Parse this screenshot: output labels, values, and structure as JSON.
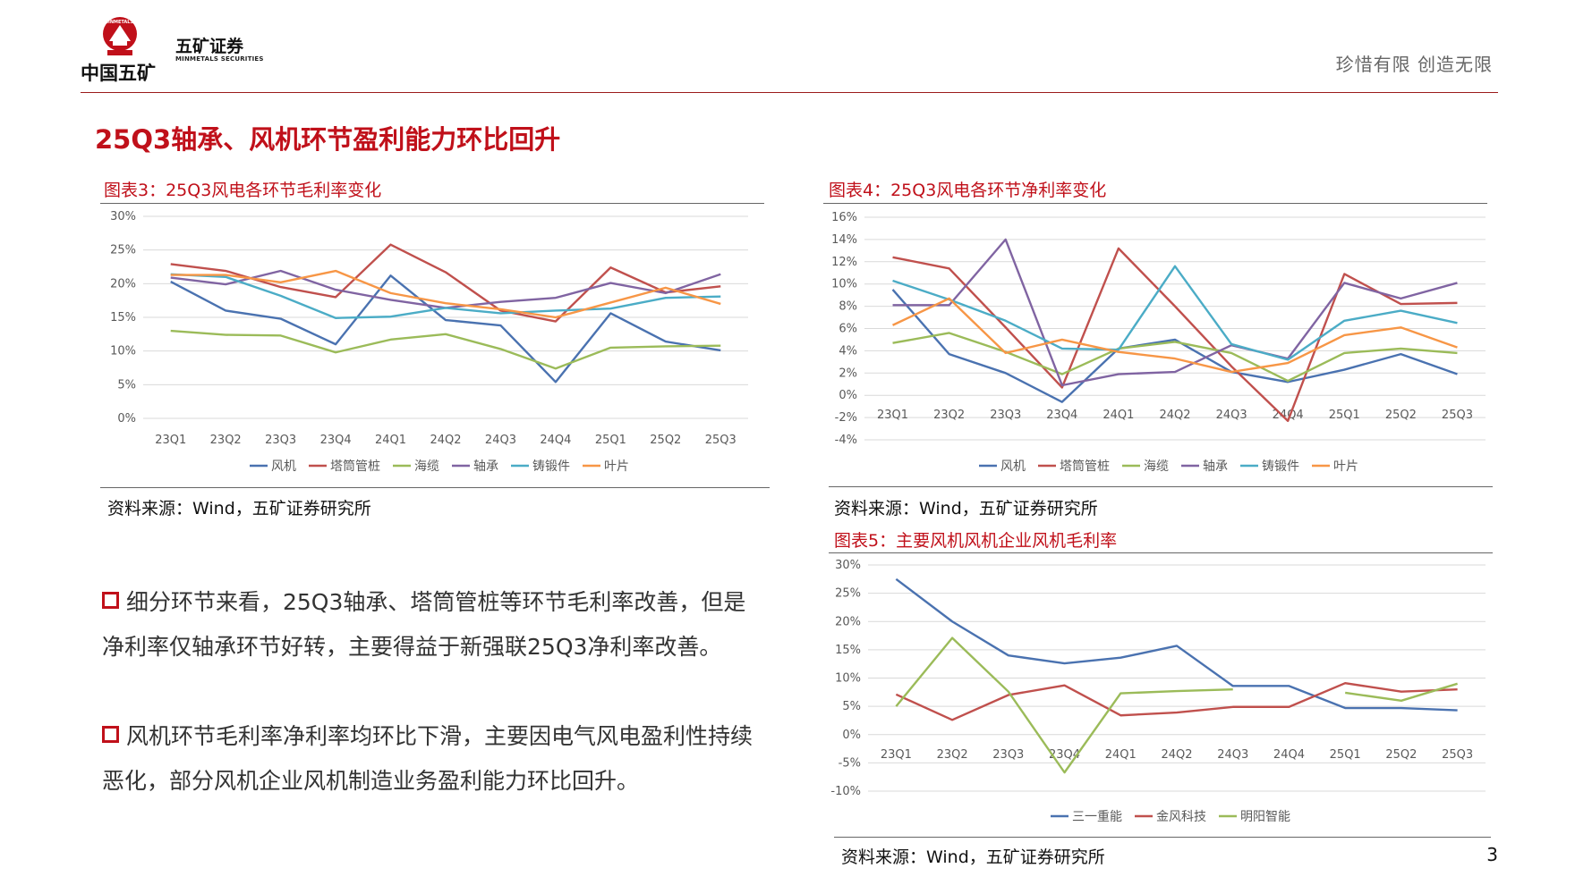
{
  "header": {
    "logo_cn": "中国五矿",
    "logo_badge": "MINMETALS",
    "brand_cn": "五矿证券",
    "brand_en": "MINMETALS SECURITIES",
    "slogan": "珍惜有限  创造无限"
  },
  "page_title": "25Q3轴承、风机环节盈利能力环比回升",
  "page_number": "3",
  "bullets": [
    "细分环节来看，25Q3轴承、塔筒管桩等环节毛利率改善，但是净利率仅轴承环节好转，主要得益于新强联25Q3净利率改善。",
    "风机环节毛利率净利率均环比下滑，主要因电气风电盈利性持续恶化，部分风机企业风机制造业务盈利能力环比回升。"
  ],
  "chart_data": [
    {
      "id": "chart3",
      "type": "line",
      "title": "图表3：25Q3风电各环节毛利率变化",
      "source": "资料来源：Wind，五矿证券研究所",
      "categories": [
        "23Q1",
        "23Q2",
        "23Q3",
        "23Q4",
        "24Q1",
        "24Q2",
        "24Q3",
        "24Q4",
        "25Q1",
        "25Q2",
        "25Q3"
      ],
      "yticks": [
        "0%",
        "5%",
        "10%",
        "15%",
        "20%",
        "25%",
        "30%"
      ],
      "ylim": [
        0,
        30
      ],
      "series": [
        {
          "name": "风机",
          "color": "#4a72b0",
          "values": [
            20.3,
            16.0,
            14.8,
            11.0,
            21.2,
            14.6,
            13.8,
            5.4,
            15.6,
            11.4,
            10.1
          ]
        },
        {
          "name": "塔筒管桩",
          "color": "#c0504d",
          "values": [
            22.9,
            21.9,
            19.5,
            18.0,
            25.8,
            21.7,
            16.0,
            14.4,
            22.4,
            18.7,
            19.6
          ]
        },
        {
          "name": "海缆",
          "color": "#9bbb59",
          "values": [
            13.0,
            12.4,
            12.3,
            9.8,
            11.7,
            12.5,
            10.3,
            7.4,
            10.5,
            10.7,
            10.8
          ]
        },
        {
          "name": "轴承",
          "color": "#8064a2",
          "values": [
            20.9,
            19.9,
            21.9,
            19.1,
            17.6,
            16.4,
            17.3,
            17.9,
            20.1,
            18.6,
            21.4
          ]
        },
        {
          "name": "铸锻件",
          "color": "#4bacc6",
          "values": [
            21.4,
            21.0,
            18.2,
            14.9,
            15.1,
            16.4,
            15.6,
            16.0,
            16.3,
            17.9,
            18.1
          ]
        },
        {
          "name": "叶片",
          "color": "#f79646",
          "values": [
            21.3,
            21.3,
            20.2,
            21.9,
            18.6,
            17.1,
            16.2,
            15.0,
            17.2,
            19.4,
            17.0
          ]
        }
      ]
    },
    {
      "id": "chart4",
      "type": "line",
      "title": "图表4：25Q3风电各环节净利率变化",
      "source": "资料来源：Wind，五矿证券研究所",
      "categories": [
        "23Q1",
        "23Q2",
        "23Q3",
        "23Q4",
        "24Q1",
        "24Q2",
        "24Q3",
        "24Q4",
        "25Q1",
        "25Q2",
        "25Q3"
      ],
      "yticks": [
        "-4%",
        "-2%",
        "0%",
        "2%",
        "4%",
        "6%",
        "8%",
        "10%",
        "12%",
        "14%",
        "16%"
      ],
      "ylim": [
        -4,
        16
      ],
      "series": [
        {
          "name": "风机",
          "color": "#4a72b0",
          "values": [
            9.5,
            3.7,
            2.0,
            -0.6,
            4.2,
            5.0,
            2.1,
            1.2,
            2.3,
            3.7,
            1.9
          ]
        },
        {
          "name": "塔筒管桩",
          "color": "#c0504d",
          "values": [
            12.4,
            11.4,
            6.1,
            0.7,
            13.2,
            8.0,
            2.6,
            -2.3,
            10.9,
            8.2,
            8.3
          ]
        },
        {
          "name": "海缆",
          "color": "#9bbb59",
          "values": [
            4.7,
            5.6,
            3.9,
            1.9,
            4.2,
            4.8,
            3.8,
            1.3,
            3.8,
            4.2,
            3.8
          ]
        },
        {
          "name": "轴承",
          "color": "#8064a2",
          "values": [
            8.1,
            8.1,
            14.0,
            0.9,
            1.9,
            2.1,
            4.5,
            3.3,
            10.1,
            8.7,
            10.1
          ]
        },
        {
          "name": "铸锻件",
          "color": "#4bacc6",
          "values": [
            10.3,
            8.6,
            6.7,
            4.2,
            4.1,
            11.6,
            4.6,
            3.2,
            6.7,
            7.6,
            6.5
          ]
        },
        {
          "name": "叶片",
          "color": "#f79646",
          "values": [
            6.3,
            8.7,
            3.8,
            5.0,
            3.9,
            3.3,
            2.1,
            2.9,
            5.4,
            6.1,
            4.3
          ]
        }
      ]
    },
    {
      "id": "chart5",
      "type": "line",
      "title": "图表5：主要风机风机企业风机毛利率",
      "source": "资料来源：Wind，五矿证券研究所",
      "categories": [
        "23Q1",
        "23Q2",
        "23Q3",
        "23Q4",
        "24Q1",
        "24Q2",
        "24Q3",
        "24Q4",
        "25Q1",
        "25Q2",
        "25Q3"
      ],
      "yticks": [
        "-10%",
        "-5%",
        "0%",
        "5%",
        "10%",
        "15%",
        "20%",
        "25%",
        "30%"
      ],
      "ylim": [
        -10,
        30
      ],
      "series": [
        {
          "name": "三一重能",
          "color": "#4a72b0",
          "values": [
            27.5,
            20.0,
            14.0,
            12.6,
            13.6,
            15.7,
            8.6,
            8.6,
            4.7,
            4.7,
            4.3
          ]
        },
        {
          "name": "金风科技",
          "color": "#c0504d",
          "values": [
            7.1,
            2.6,
            7.0,
            8.7,
            3.4,
            3.9,
            4.9,
            4.9,
            9.1,
            7.6,
            8.0
          ]
        },
        {
          "name": "明阳智能",
          "color": "#9bbb59",
          "values": [
            5.0,
            17.1,
            7.6,
            -6.7,
            7.3,
            7.7,
            8.0,
            null,
            7.4,
            6.0,
            9.0
          ]
        }
      ]
    }
  ]
}
